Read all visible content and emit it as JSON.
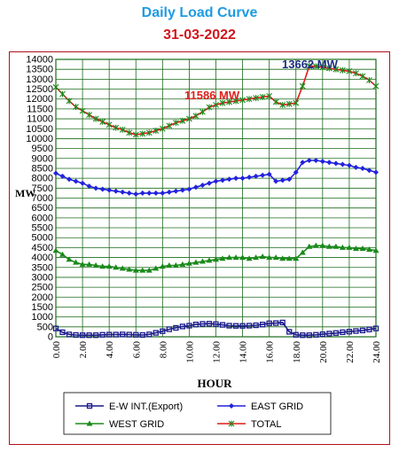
{
  "title": "Daily Load Curve",
  "subtitle": "31-03-2022",
  "colors": {
    "title": "#1e9be0",
    "subtitle": "#d2141c",
    "frame": "#b0101c",
    "plot_bg": "#ffffff",
    "grid": "#1a6b1a",
    "annot_low": "#e0201c",
    "annot_high": "#1a2f80"
  },
  "chart_data": {
    "type": "line",
    "xlabel": "HOUR",
    "ylabel": "MW",
    "xlim": [
      0,
      24
    ],
    "ylim": [
      0,
      14000
    ],
    "grid": true,
    "legend_position": "bottom",
    "x_ticks": [
      "0.00",
      "2.00",
      "4.00",
      "6.00",
      "8.00",
      "10.00",
      "12.00",
      "14.00",
      "16.00",
      "18.00",
      "20.00",
      "22.00",
      "24.00"
    ],
    "y_ticks": [
      "0",
      "500",
      "1000",
      "1500",
      "2000",
      "2500",
      "3000",
      "3500",
      "4000",
      "4500",
      "5000",
      "5500",
      "6000",
      "6500",
      "7000",
      "7500",
      "8000",
      "8500",
      "9000",
      "9500",
      "10000",
      "10500",
      "11000",
      "11500",
      "12000",
      "12500",
      "13000",
      "13500",
      "14000"
    ],
    "annotations": [
      {
        "text": "11586 MW",
        "x": 11.5,
        "y": 11586,
        "color_key": "annot_low"
      },
      {
        "text": "13662 MW",
        "x": 19.0,
        "y": 13662,
        "color_key": "annot_high"
      }
    ],
    "series": [
      {
        "name": "E-W INT.(Export)",
        "color": "#1a1a8c",
        "marker": "square",
        "x": [
          0,
          0.5,
          1,
          1.5,
          2,
          2.5,
          3,
          3.5,
          4,
          4.5,
          5,
          5.5,
          6,
          6.5,
          7,
          7.5,
          8,
          8.5,
          9,
          9.5,
          10,
          10.5,
          11,
          11.5,
          12,
          12.5,
          13,
          13.5,
          14,
          14.5,
          15,
          15.5,
          16,
          16.5,
          17,
          17.5,
          18,
          18.5,
          19,
          19.5,
          20,
          20.5,
          21,
          21.5,
          22,
          22.5,
          23,
          23.5,
          24
        ],
        "values": [
          420,
          230,
          120,
          90,
          80,
          80,
          80,
          100,
          110,
          110,
          120,
          110,
          100,
          90,
          120,
          200,
          280,
          380,
          450,
          520,
          560,
          620,
          650,
          660,
          640,
          600,
          560,
          550,
          550,
          560,
          580,
          620,
          680,
          690,
          720,
          250,
          100,
          80,
          80,
          100,
          130,
          160,
          190,
          230,
          260,
          290,
          320,
          370,
          420
        ]
      },
      {
        "name": "EAST GRID",
        "color": "#2222dd",
        "marker": "diamond",
        "x": [
          0,
          0.5,
          1,
          1.5,
          2,
          2.5,
          3,
          3.5,
          4,
          4.5,
          5,
          5.5,
          6,
          6.5,
          7,
          7.5,
          8,
          8.5,
          9,
          9.5,
          10,
          10.5,
          11,
          11.5,
          12,
          12.5,
          13,
          13.5,
          14,
          14.5,
          15,
          15.5,
          16,
          16.5,
          17,
          17.5,
          18,
          18.5,
          19,
          19.5,
          20,
          20.5,
          21,
          21.5,
          22,
          22.5,
          23,
          23.5,
          24
        ],
        "values": [
          8250,
          8100,
          7950,
          7850,
          7750,
          7600,
          7500,
          7450,
          7400,
          7350,
          7300,
          7250,
          7200,
          7250,
          7250,
          7250,
          7250,
          7300,
          7350,
          7400,
          7450,
          7550,
          7650,
          7750,
          7850,
          7900,
          7950,
          8000,
          8000,
          8050,
          8100,
          8150,
          8200,
          7850,
          7900,
          7950,
          8300,
          8800,
          8900,
          8900,
          8850,
          8800,
          8750,
          8700,
          8650,
          8550,
          8500,
          8400,
          8300
        ]
      },
      {
        "name": "WEST GRID",
        "color": "#1a8a1a",
        "marker": "triangle",
        "x": [
          0,
          0.5,
          1,
          1.5,
          2,
          2.5,
          3,
          3.5,
          4,
          4.5,
          5,
          5.5,
          6,
          6.5,
          7,
          7.5,
          8,
          8.5,
          9,
          9.5,
          10,
          10.5,
          11,
          11.5,
          12,
          12.5,
          13,
          13.5,
          14,
          14.5,
          15,
          15.5,
          16,
          16.5,
          17,
          17.5,
          18,
          18.5,
          19,
          19.5,
          20,
          20.5,
          21,
          21.5,
          22,
          22.5,
          23,
          23.5,
          24
        ],
        "values": [
          4350,
          4150,
          3900,
          3750,
          3650,
          3650,
          3600,
          3550,
          3550,
          3500,
          3450,
          3400,
          3350,
          3350,
          3350,
          3450,
          3550,
          3600,
          3600,
          3650,
          3700,
          3750,
          3800,
          3850,
          3900,
          3950,
          4000,
          4000,
          4000,
          3950,
          4000,
          4050,
          4000,
          4000,
          3950,
          3950,
          3950,
          4250,
          4550,
          4600,
          4600,
          4550,
          4550,
          4500,
          4500,
          4450,
          4450,
          4400,
          4350
        ]
      },
      {
        "name": "TOTAL",
        "color": "#e01a1a",
        "marker": "star",
        "marker_color": "#1a8a1a",
        "x": [
          0,
          0.5,
          1,
          1.5,
          2,
          2.5,
          3,
          3.5,
          4,
          4.5,
          5,
          5.5,
          6,
          6.5,
          7,
          7.5,
          8,
          8.5,
          9,
          9.5,
          10,
          10.5,
          11,
          11.5,
          12,
          12.5,
          13,
          13.5,
          14,
          14.5,
          15,
          15.5,
          16,
          16.5,
          17,
          17.5,
          18,
          18.5,
          19,
          19.5,
          20,
          20.5,
          21,
          21.5,
          22,
          22.5,
          23,
          23.5,
          24
        ],
        "values": [
          12600,
          12250,
          11900,
          11600,
          11400,
          11200,
          11000,
          10850,
          10700,
          10550,
          10450,
          10300,
          10200,
          10250,
          10300,
          10400,
          10500,
          10650,
          10800,
          10900,
          11000,
          11150,
          11350,
          11586,
          11700,
          11800,
          11850,
          11900,
          11950,
          12000,
          12050,
          12100,
          12150,
          11850,
          11700,
          11750,
          11800,
          12650,
          13662,
          13650,
          13600,
          13550,
          13500,
          13450,
          13400,
          13300,
          13150,
          12950,
          12650
        ]
      }
    ]
  }
}
